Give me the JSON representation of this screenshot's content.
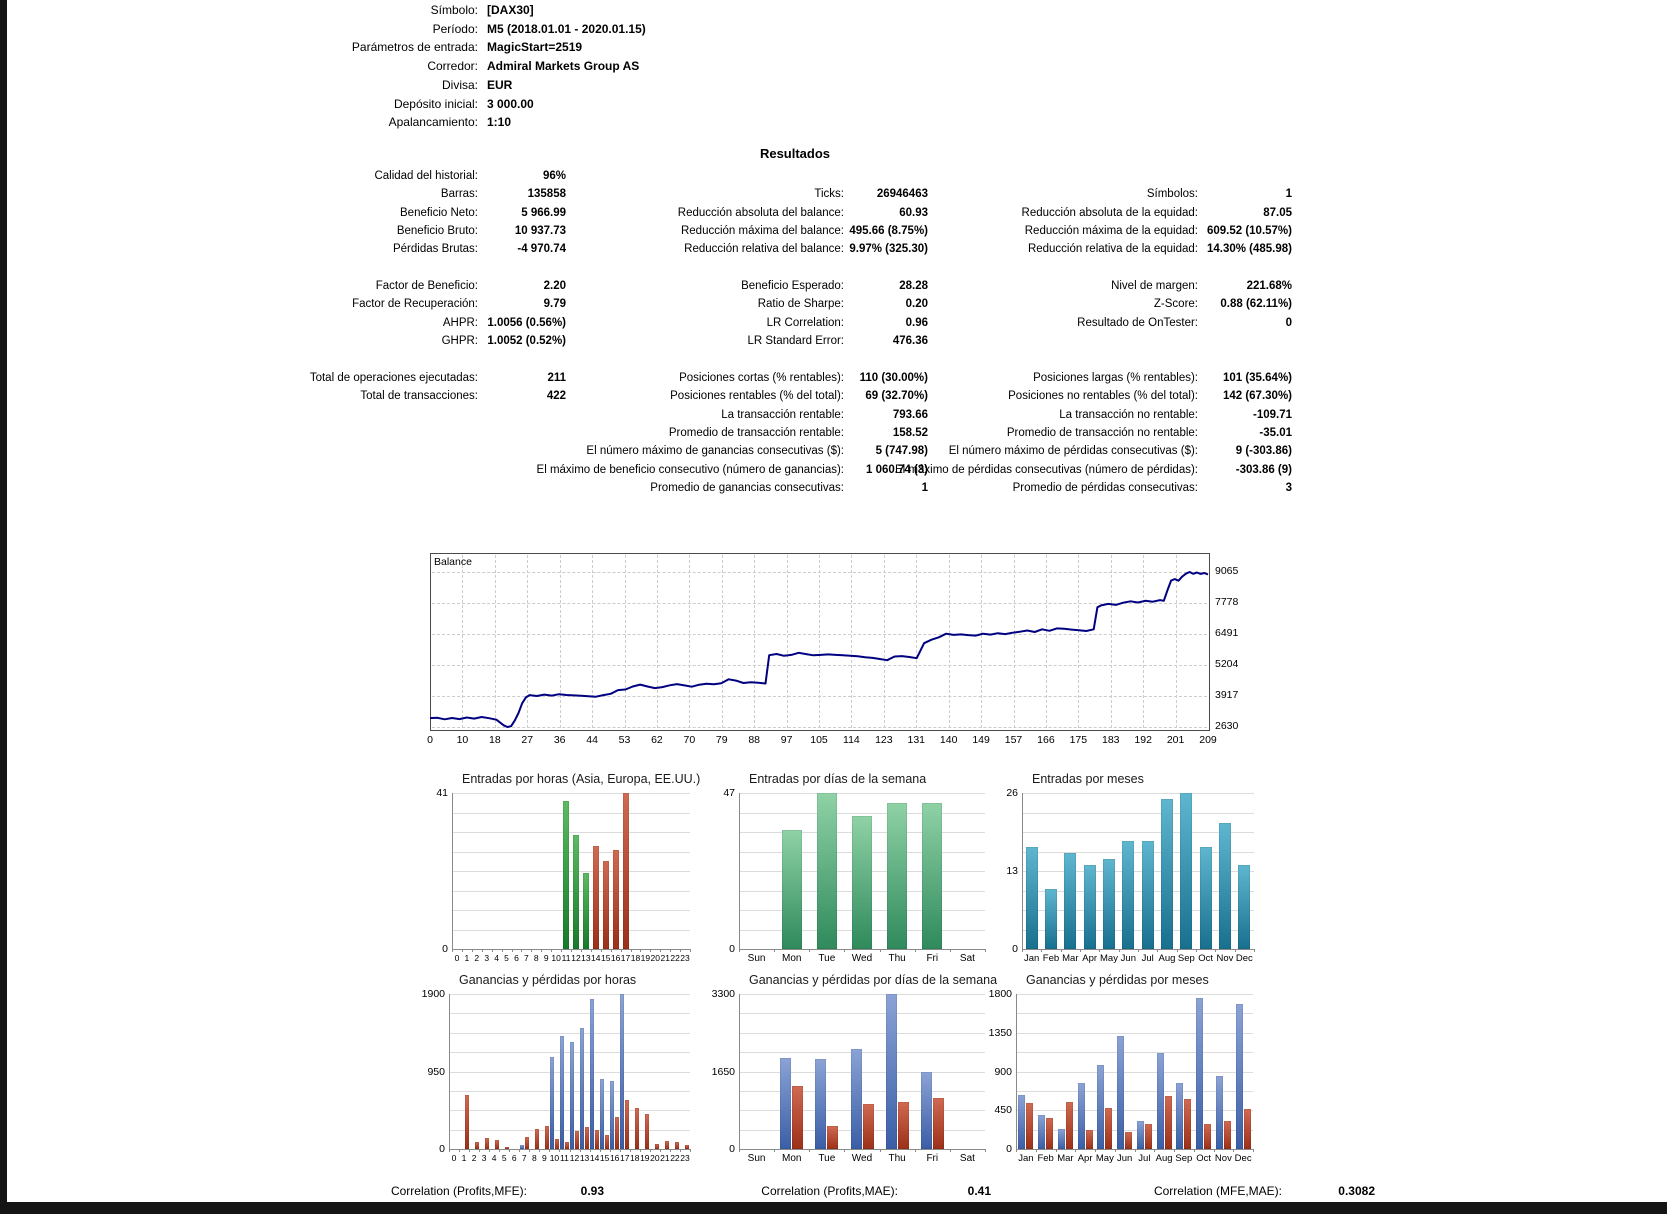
{
  "header": {
    "rows": [
      {
        "label": "Símbolo:",
        "value": "[DAX30]"
      },
      {
        "label": "Período:",
        "value": "M5 (2018.01.01 - 2020.01.15)"
      },
      {
        "label": "Parámetros de entrada:",
        "value": "MagicStart=2519"
      },
      {
        "label": "Corredor:",
        "value": "Admiral Markets Group AS"
      },
      {
        "label": "Divisa:",
        "value": "EUR"
      },
      {
        "label": "Depósito inicial:",
        "value": "3 000.00"
      },
      {
        "label": "Apalancamiento:",
        "value": "1:10"
      }
    ]
  },
  "results": {
    "title": "Resultados",
    "rows": [
      [
        "Calidad del historial:",
        "96%",
        "",
        "",
        "",
        ""
      ],
      [
        "Barras:",
        "135858",
        "Ticks:",
        "26946463",
        "Símbolos:",
        "1"
      ],
      [
        "Beneficio Neto:",
        "5 966.99",
        "Reducción absoluta del balance:",
        "60.93",
        "Reducción absoluta de la equidad:",
        "87.05"
      ],
      [
        "Beneficio Bruto:",
        "10 937.73",
        "Reducción máxima del balance:",
        "495.66 (8.75%)",
        "Reducción máxima de la equidad:",
        "609.52 (10.57%)"
      ],
      [
        "Pérdidas Brutas:",
        "-4 970.74",
        "Reducción relativa del balance:",
        "9.97% (325.30)",
        "Reducción relativa de la equidad:",
        "14.30% (485.98)"
      ],
      [
        "",
        "",
        "",
        "",
        "",
        ""
      ],
      [
        "Factor de Beneficio:",
        "2.20",
        "Beneficio Esperado:",
        "28.28",
        "Nivel de margen:",
        "221.68%"
      ],
      [
        "Factor de Recuperación:",
        "9.79",
        "Ratio de Sharpe:",
        "0.20",
        "Z-Score:",
        "0.88 (62.11%)"
      ],
      [
        "AHPR:",
        "1.0056 (0.56%)",
        "LR Correlation:",
        "0.96",
        "Resultado de OnTester:",
        "0"
      ],
      [
        "GHPR:",
        "1.0052 (0.52%)",
        "LR Standard Error:",
        "476.36",
        "",
        ""
      ],
      [
        "",
        "",
        "",
        "",
        "",
        ""
      ],
      [
        "Total de operaciones ejecutadas:",
        "211",
        "Posiciones cortas (% rentables):",
        "110 (30.00%)",
        "Posiciones largas (% rentables):",
        "101 (35.64%)"
      ],
      [
        "Total de transacciones:",
        "422",
        "Posiciones rentables (% del total):",
        "69 (32.70%)",
        "Posiciones no rentables (% del total):",
        "142 (67.30%)"
      ],
      [
        "",
        "",
        "La transacción rentable:",
        "793.66",
        "La transacción no rentable:",
        "-109.71"
      ],
      [
        "",
        "",
        "Promedio de transacción rentable:",
        "158.52",
        "Promedio de transacción no rentable:",
        "-35.01"
      ],
      [
        "",
        "",
        "El número máximo de ganancias consecutivas ($):",
        "5 (747.98)",
        "El número máximo de pérdidas consecutivas ($):",
        "9 (-303.86)"
      ],
      [
        "",
        "",
        "El máximo de beneficio consecutivo (número de ganancias):",
        "1 060.74 (3)",
        "El máximo de pérdidas consecutivas (número de pérdidas):",
        "-303.86 (9)"
      ],
      [
        "",
        "",
        "Promedio de ganancias consecutivas:",
        "1",
        "Promedio de pérdidas consecutivas:",
        "3"
      ]
    ]
  },
  "correlations": [
    {
      "label": "Correlation (Profits,MFE):",
      "value": "0.93"
    },
    {
      "label": "Correlation (Profits,MAE):",
      "value": "0.41"
    },
    {
      "label": "Correlation (MFE,MAE):",
      "value": "0.3082"
    }
  ],
  "chart_data": [
    {
      "id": "balance",
      "type": "line",
      "title": "Balance",
      "line_color": "#000080",
      "grid": "dashed",
      "x_ticks": [
        0,
        10,
        18,
        27,
        36,
        44,
        53,
        62,
        70,
        79,
        88,
        97,
        105,
        114,
        123,
        131,
        140,
        149,
        157,
        166,
        175,
        183,
        192,
        201,
        209
      ],
      "y_ticks": [
        9065,
        7778,
        6491,
        5204,
        3917,
        2630
      ],
      "xlim": [
        0,
        211
      ],
      "ylim": [
        2630,
        9065
      ],
      "points": [
        [
          0,
          3000
        ],
        [
          2,
          3010
        ],
        [
          4,
          2950
        ],
        [
          6,
          3005
        ],
        [
          8,
          2960
        ],
        [
          10,
          3025
        ],
        [
          12,
          2980
        ],
        [
          14,
          3045
        ],
        [
          16,
          2995
        ],
        [
          18,
          2935
        ],
        [
          20,
          2700
        ],
        [
          21,
          2630
        ],
        [
          22,
          2665
        ],
        [
          23,
          2905
        ],
        [
          24,
          3210
        ],
        [
          25,
          3620
        ],
        [
          26,
          3860
        ],
        [
          27,
          3955
        ],
        [
          29,
          3915
        ],
        [
          31,
          3975
        ],
        [
          33,
          3935
        ],
        [
          35,
          3990
        ],
        [
          37,
          3960
        ],
        [
          39,
          3940
        ],
        [
          41,
          3925
        ],
        [
          43,
          3905
        ],
        [
          45,
          3890
        ],
        [
          47,
          3955
        ],
        [
          49,
          4010
        ],
        [
          51,
          4160
        ],
        [
          53,
          4185
        ],
        [
          55,
          4310
        ],
        [
          57,
          4390
        ],
        [
          59,
          4310
        ],
        [
          61,
          4245
        ],
        [
          63,
          4285
        ],
        [
          65,
          4360
        ],
        [
          67,
          4410
        ],
        [
          69,
          4355
        ],
        [
          71,
          4305
        ],
        [
          73,
          4385
        ],
        [
          75,
          4425
        ],
        [
          77,
          4405
        ],
        [
          79,
          4450
        ],
        [
          81,
          4610
        ],
        [
          83,
          4555
        ],
        [
          85,
          4455
        ],
        [
          87,
          4490
        ],
        [
          89,
          4465
        ],
        [
          91,
          4435
        ],
        [
          92,
          5610
        ],
        [
          94,
          5660
        ],
        [
          96,
          5585
        ],
        [
          98,
          5625
        ],
        [
          100,
          5710
        ],
        [
          102,
          5655
        ],
        [
          104,
          5605
        ],
        [
          106,
          5625
        ],
        [
          108,
          5645
        ],
        [
          110,
          5625
        ],
        [
          112,
          5605
        ],
        [
          114,
          5585
        ],
        [
          116,
          5565
        ],
        [
          118,
          5525
        ],
        [
          120,
          5500
        ],
        [
          122,
          5455
        ],
        [
          124,
          5405
        ],
        [
          126,
          5555
        ],
        [
          128,
          5575
        ],
        [
          130,
          5535
        ],
        [
          132,
          5485
        ],
        [
          134,
          6110
        ],
        [
          136,
          6255
        ],
        [
          138,
          6355
        ],
        [
          140,
          6505
        ],
        [
          142,
          6455
        ],
        [
          144,
          6475
        ],
        [
          146,
          6445
        ],
        [
          148,
          6425
        ],
        [
          150,
          6505
        ],
        [
          152,
          6465
        ],
        [
          154,
          6525
        ],
        [
          156,
          6485
        ],
        [
          158,
          6545
        ],
        [
          160,
          6585
        ],
        [
          162,
          6635
        ],
        [
          164,
          6575
        ],
        [
          166,
          6685
        ],
        [
          168,
          6625
        ],
        [
          170,
          6725
        ],
        [
          172,
          6705
        ],
        [
          174,
          6675
        ],
        [
          176,
          6645
        ],
        [
          178,
          6615
        ],
        [
          180,
          6685
        ],
        [
          181,
          7600
        ],
        [
          182,
          7680
        ],
        [
          184,
          7740
        ],
        [
          186,
          7700
        ],
        [
          188,
          7790
        ],
        [
          190,
          7850
        ],
        [
          192,
          7800
        ],
        [
          194,
          7870
        ],
        [
          196,
          7830
        ],
        [
          198,
          7900
        ],
        [
          199,
          7870
        ],
        [
          200,
          8300
        ],
        [
          201,
          8710
        ],
        [
          202,
          8770
        ],
        [
          203,
          8705
        ],
        [
          204,
          8875
        ],
        [
          205,
          8995
        ],
        [
          206,
          9065
        ],
        [
          207,
          8990
        ],
        [
          208,
          9045
        ],
        [
          209,
          8985
        ],
        [
          210,
          9025
        ],
        [
          211,
          8967
        ]
      ]
    },
    {
      "id": "entries_hours",
      "type": "bar",
      "title": "Entradas por horas (Asia, Europa, EE.UU.)",
      "categories": [
        "0",
        "1",
        "2",
        "3",
        "4",
        "5",
        "6",
        "7",
        "8",
        "9",
        "10",
        "11",
        "12",
        "13",
        "14",
        "15",
        "16",
        "17",
        "18",
        "19",
        "20",
        "21",
        "22",
        "23"
      ],
      "ymax": 41,
      "y_ticks": [
        41,
        0
      ],
      "palette": {
        "green": [
          "#5cbb63",
          "#177a28"
        ],
        "red": [
          "#d06a52",
          "#9c3018"
        ]
      },
      "series": [
        {
          "name": "entries",
          "values": [
            0,
            0,
            0,
            0,
            0,
            0,
            0,
            0,
            0,
            0,
            0,
            39,
            30,
            20,
            27,
            23,
            26,
            41,
            0,
            0,
            0,
            0,
            0,
            0
          ],
          "bar_colors": [
            null,
            null,
            null,
            null,
            null,
            null,
            null,
            null,
            null,
            null,
            null,
            "green",
            "green",
            "green",
            "red",
            "red",
            "red",
            "red",
            null,
            null,
            null,
            null,
            null,
            null
          ]
        }
      ]
    },
    {
      "id": "entries_days",
      "type": "bar",
      "title": "Entradas por días de la semana",
      "categories": [
        "Sun",
        "Mon",
        "Tue",
        "Wed",
        "Thu",
        "Fri",
        "Sat"
      ],
      "ymax": 47,
      "y_ticks": [
        47,
        0
      ],
      "palette": {
        "main": [
          "#8fd2a6",
          "#2f8a5c"
        ]
      },
      "series": [
        {
          "name": "entries",
          "color": "main",
          "values": [
            0,
            36,
            47,
            40,
            44,
            44,
            0
          ]
        }
      ]
    },
    {
      "id": "entries_months",
      "type": "bar",
      "title": "Entradas por meses",
      "categories": [
        "Jan",
        "Feb",
        "Mar",
        "Apr",
        "May",
        "Jun",
        "Jul",
        "Aug",
        "Sep",
        "Oct",
        "Nov",
        "Dec"
      ],
      "ymax": 26,
      "y_ticks": [
        26,
        13,
        0
      ],
      "palette": {
        "main": [
          "#5fb6cf",
          "#18708f"
        ]
      },
      "series": [
        {
          "name": "entries",
          "color": "main",
          "values": [
            17,
            10,
            16,
            14,
            15,
            18,
            18,
            25,
            26,
            17,
            21,
            14
          ]
        }
      ]
    },
    {
      "id": "pl_hours",
      "type": "bar",
      "title": "Ganancias y pérdidas por horas",
      "categories": [
        "0",
        "1",
        "2",
        "3",
        "4",
        "5",
        "6",
        "7",
        "8",
        "9",
        "10",
        "11",
        "12",
        "13",
        "14",
        "15",
        "16",
        "17",
        "18",
        "19",
        "20",
        "21",
        "22",
        "23"
      ],
      "ymax": 1900,
      "y_ticks": [
        1900,
        950,
        0
      ],
      "palette": {
        "blue": [
          "#8ba3d6",
          "#3a5ea6"
        ],
        "red": [
          "#d06a52",
          "#9c3018"
        ]
      },
      "series": [
        {
          "name": "profits",
          "color": "blue",
          "values": [
            0,
            0,
            0,
            0,
            0,
            0,
            0,
            50,
            0,
            0,
            1130,
            1380,
            1310,
            1480,
            1840,
            860,
            830,
            1900,
            0,
            0,
            0,
            0,
            0,
            0
          ]
        },
        {
          "name": "losses",
          "color": "red",
          "values": [
            0,
            660,
            90,
            130,
            110,
            30,
            0,
            150,
            250,
            280,
            120,
            80,
            220,
            270,
            230,
            170,
            390,
            600,
            500,
            430,
            60,
            100,
            80,
            50
          ]
        }
      ]
    },
    {
      "id": "pl_days",
      "type": "bar",
      "title": "Ganancias y pérdidas por días de la semana",
      "categories": [
        "Sun",
        "Mon",
        "Tue",
        "Wed",
        "Thu",
        "Fri",
        "Sat"
      ],
      "ymax": 3300,
      "y_ticks": [
        3300,
        1650,
        0
      ],
      "palette": {
        "blue": [
          "#8ba3d6",
          "#3a5ea6"
        ],
        "red": [
          "#d06a52",
          "#9c3018"
        ]
      },
      "series": [
        {
          "name": "profits",
          "color": "blue",
          "values": [
            0,
            1940,
            1910,
            2120,
            3300,
            1650,
            0
          ]
        },
        {
          "name": "losses",
          "color": "red",
          "values": [
            0,
            1350,
            500,
            960,
            1010,
            1080,
            0
          ]
        }
      ]
    },
    {
      "id": "pl_months",
      "type": "bar",
      "title": "Ganancias y pérdidas por meses",
      "categories": [
        "Jan",
        "Feb",
        "Mar",
        "Apr",
        "May",
        "Jun",
        "Jul",
        "Aug",
        "Sep",
        "Oct",
        "Nov",
        "Dec"
      ],
      "ymax": 1800,
      "y_ticks": [
        1800,
        1350,
        900,
        450,
        0
      ],
      "palette": {
        "blue": [
          "#8ba3d6",
          "#3a5ea6"
        ],
        "red": [
          "#d06a52",
          "#9c3018"
        ]
      },
      "series": [
        {
          "name": "profits",
          "color": "blue",
          "values": [
            630,
            400,
            230,
            765,
            980,
            1310,
            325,
            1120,
            765,
            1750,
            845,
            1685
          ]
        },
        {
          "name": "losses",
          "color": "red",
          "values": [
            530,
            365,
            545,
            220,
            480,
            200,
            295,
            610,
            580,
            285,
            320,
            465
          ]
        }
      ]
    }
  ]
}
